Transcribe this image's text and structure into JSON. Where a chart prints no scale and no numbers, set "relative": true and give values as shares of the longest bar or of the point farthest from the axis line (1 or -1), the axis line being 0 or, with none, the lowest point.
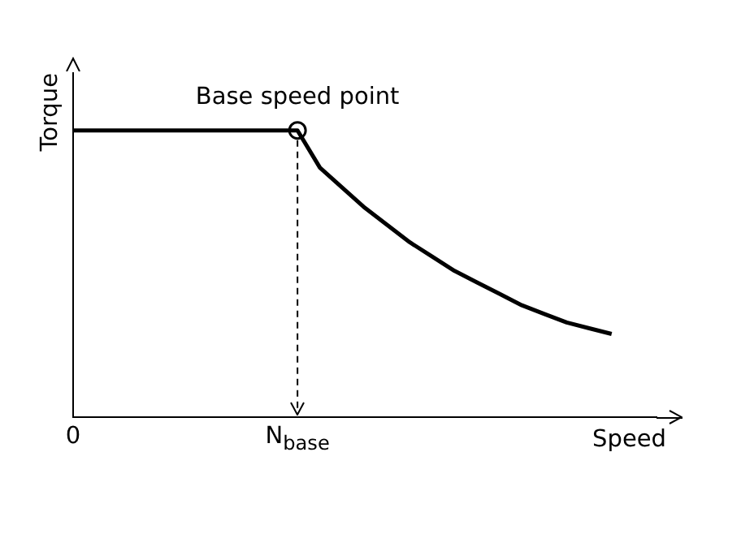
{
  "chart_data": {
    "type": "line",
    "relative": true,
    "xlabel": "Speed",
    "ylabel": "Torque",
    "categories": [
      "0",
      null,
      null,
      null,
      null,
      null,
      null,
      null,
      null,
      null,
      "N$_{base}$",
      null,
      null,
      null,
      null,
      null,
      null,
      null,
      null,
      null,
      null,
      null,
      null,
      null,
      null,
      null,
      null
    ],
    "series": [
      {
        "type": "line",
        "color": "#000000",
        "marker": "none",
        "values": [
          1,
          1,
          1,
          1,
          1,
          1,
          1,
          1,
          1,
          1,
          1,
          0.87,
          0.8,
          0.73,
          0.67,
          0.61,
          0.56,
          0.51,
          0.47,
          0.43,
          0.39,
          0.36,
          0.33,
          0.31,
          0.29,
          null,
          null
        ]
      },
      {
        "type": "scatter",
        "color": "#000000",
        "marker": "circle",
        "x": [
          "N$_{base}$"
        ],
        "values": [
          1
        ]
      }
    ],
    "annotations": [
      {
        "text": "Base speed point",
        "x": "N$_{base}$",
        "y": 1
      }
    ],
    "ref_lines": [
      {
        "axis": "x",
        "value": "N$_{base}$",
        "line_style": "dashed",
        "color": "#000000"
      }
    ],
    "tick_labels": "x",
    "grid": false,
    "legend": false
  }
}
